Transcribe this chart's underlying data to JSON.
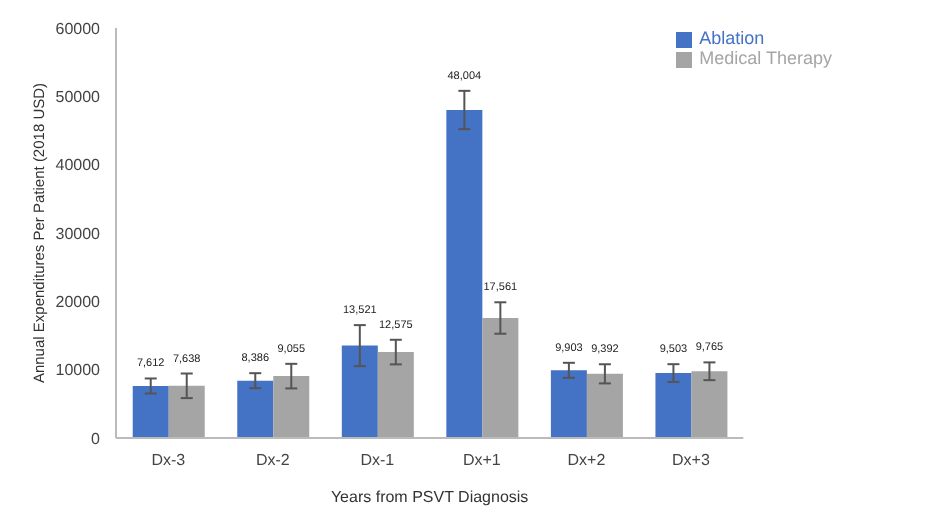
{
  "chart_data": {
    "type": "bar",
    "xlabel": "Years from PSVT Diagnosis",
    "ylabel": "Annual Expenditures Per Patient (2018 USD)",
    "categories": [
      "Dx-3",
      "Dx-2",
      "Dx-1",
      "Dx+1",
      "Dx+2",
      "Dx+3"
    ],
    "series": [
      {
        "name": "Ablation",
        "color": "#4472c4",
        "values": [
          7612,
          8386,
          13521,
          48004,
          9903,
          9503
        ],
        "errors": [
          1100,
          1100,
          3000,
          2800,
          1100,
          1300
        ],
        "value_labels": [
          "7,612",
          "8,386",
          "13,521",
          "48,004",
          "9,903",
          "9,503"
        ]
      },
      {
        "name": "Medical Therapy",
        "color": "#a5a5a5",
        "values": [
          7638,
          9055,
          12575,
          17561,
          9392,
          9765
        ],
        "errors": [
          1800,
          1800,
          1800,
          2300,
          1400,
          1300
        ],
        "value_labels": [
          "7,638",
          "9,055",
          "12,575",
          "17,561",
          "9,392",
          "9,765"
        ]
      }
    ],
    "ylim": [
      0,
      60000
    ],
    "yticks": [
      0,
      10000,
      20000,
      30000,
      40000,
      50000,
      60000
    ],
    "grid": false,
    "legend": "top right"
  }
}
